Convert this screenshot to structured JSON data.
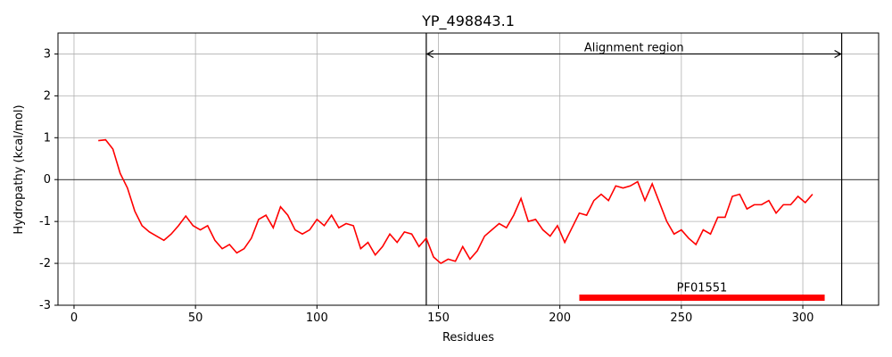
{
  "chart_data": {
    "type": "line",
    "title": "YP_498843.1",
    "x_label": "Residues",
    "y_label": "Hydropathy (kcal/mol)",
    "x": [
      10,
      13,
      16,
      19,
      22,
      25,
      28,
      31,
      34,
      37,
      40,
      43,
      46,
      49,
      52,
      55,
      58,
      61,
      64,
      67,
      70,
      73,
      76,
      79,
      82,
      85,
      88,
      91,
      94,
      97,
      100,
      103,
      106,
      109,
      112,
      115,
      118,
      121,
      124,
      127,
      130,
      133,
      136,
      139,
      142,
      145,
      148,
      151,
      154,
      157,
      160,
      163,
      166,
      169,
      172,
      175,
      178,
      181,
      184,
      187,
      190,
      193,
      196,
      199,
      202,
      205,
      208,
      211,
      214,
      217,
      220,
      223,
      226,
      229,
      232,
      235,
      238,
      241,
      244,
      247,
      250,
      253,
      256,
      259,
      262,
      265,
      268,
      271,
      274,
      277,
      280,
      283,
      286,
      289,
      292,
      295,
      298,
      301,
      304
    ],
    "values": [
      0.93,
      0.95,
      0.73,
      0.15,
      -0.2,
      -0.75,
      -1.1,
      -1.25,
      -1.35,
      -1.45,
      -1.3,
      -1.1,
      -0.87,
      -1.1,
      -1.2,
      -1.1,
      -1.45,
      -1.65,
      -1.55,
      -1.75,
      -1.65,
      -1.4,
      -0.95,
      -0.85,
      -1.15,
      -0.65,
      -0.85,
      -1.2,
      -1.3,
      -1.2,
      -0.95,
      -1.1,
      -0.85,
      -1.15,
      -1.05,
      -1.1,
      -1.65,
      -1.5,
      -1.8,
      -1.6,
      -1.3,
      -1.5,
      -1.25,
      -1.3,
      -1.6,
      -1.4,
      -1.85,
      -2.0,
      -1.9,
      -1.95,
      -1.6,
      -1.9,
      -1.7,
      -1.35,
      -1.2,
      -1.05,
      -1.15,
      -0.85,
      -0.45,
      -1.0,
      -0.95,
      -1.2,
      -1.35,
      -1.1,
      -1.5,
      -1.15,
      -0.8,
      -0.85,
      -0.5,
      -0.35,
      -0.5,
      -0.15,
      -0.2,
      -0.15,
      -0.05,
      -0.5,
      -0.1,
      -0.55,
      -1.0,
      -1.3,
      -1.2,
      -1.4,
      -1.55,
      -1.2,
      -1.3,
      -0.9,
      -0.9,
      -0.4,
      -0.35,
      -0.7,
      -0.6,
      -0.6,
      -0.5,
      -0.8,
      -0.6,
      -0.6,
      -0.4,
      -0.55,
      -0.35
    ],
    "color": "#ff0000",
    "xlim": [
      -6.6,
      331.2
    ],
    "ylim": [
      -3,
      3.5
    ],
    "xticks": [
      0,
      50,
      100,
      150,
      200,
      250,
      300
    ],
    "yticks": [
      -3,
      -2,
      -1,
      0,
      1,
      2,
      3
    ],
    "grid": true,
    "hline": 0,
    "vlines": [
      145,
      316
    ],
    "arrow": {
      "label": "Alignment region",
      "x": [
        145,
        316
      ],
      "y": 3
    },
    "domain": {
      "label": "PF01551",
      "x": [
        208,
        309
      ],
      "y": -2.82,
      "color": "#ff0000"
    }
  }
}
